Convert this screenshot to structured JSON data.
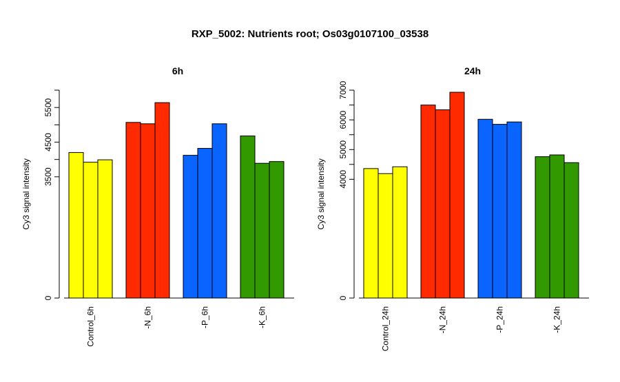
{
  "figure": {
    "title": "RXP_5002: Nutrients root; Os03g0107100_03538"
  },
  "colors": {
    "Control": "#ffff00",
    "N": "#ff2a00",
    "P": "#0a64ff",
    "K": "#339900"
  },
  "chart_data": [
    {
      "type": "bar",
      "title": "6h",
      "ylabel": "Cy3 signal intensity",
      "xlabel": "",
      "ylim": [
        0,
        6000
      ],
      "yticks": [
        0,
        3500,
        4500,
        5500
      ],
      "categories": [
        "Control_6h",
        "-N_6h",
        "-P_6h",
        "-K_6h"
      ],
      "category_colors": [
        "Control",
        "N",
        "P",
        "K"
      ],
      "groups": [
        {
          "category": "Control_6h",
          "values": [
            4200,
            3920,
            3990
          ]
        },
        {
          "category": "-N_6h",
          "values": [
            5070,
            5030,
            5640
          ]
        },
        {
          "category": "-P_6h",
          "values": [
            4120,
            4320,
            5030
          ]
        },
        {
          "category": "-K_6h",
          "values": [
            4680,
            3890,
            3940
          ]
        }
      ],
      "grid": false,
      "legend": "none"
    },
    {
      "type": "bar",
      "title": "24h",
      "ylabel": "Cy3 signal intensity",
      "xlabel": "",
      "ylim": [
        0,
        7000
      ],
      "yticks": [
        0,
        4000,
        5000,
        6000,
        7000
      ],
      "categories": [
        "Control_24h",
        "-N_24h",
        "-P_24h",
        "-K_24h"
      ],
      "category_colors": [
        "Control",
        "N",
        "P",
        "K"
      ],
      "groups": [
        {
          "category": "Control_24h",
          "values": [
            4360,
            4190,
            4420
          ]
        },
        {
          "category": "-N_24h",
          "values": [
            6500,
            6340,
            6930
          ]
        },
        {
          "category": "-P_24h",
          "values": [
            6020,
            5850,
            5930
          ]
        },
        {
          "category": "-K_24h",
          "values": [
            4760,
            4820,
            4560
          ]
        }
      ],
      "grid": false,
      "legend": "none"
    }
  ]
}
